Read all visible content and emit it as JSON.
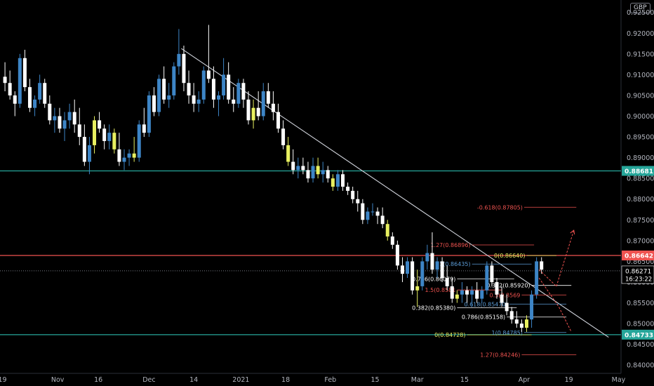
{
  "currency": "GBP",
  "colors": {
    "background": "#000000",
    "bullish": "#3d85c6",
    "bearish": "#ffffff",
    "highlight": "#e8f060",
    "support": "#26a69a",
    "resistance": "#ef5350",
    "trendline": "#d1d4dc",
    "fib_red": "#ef5350",
    "fib_yellow": "#e8f060",
    "fib_blue": "#5b9bd5",
    "fib_white": "#ffffff"
  },
  "chart_data": {
    "type": "candlestick",
    "ylim": [
      0.838,
      0.928
    ],
    "y_ticks": [
      "0.92500",
      "0.92000",
      "0.91500",
      "0.91000",
      "0.90500",
      "0.90000",
      "0.89500",
      "0.89000",
      "0.88500",
      "0.88000",
      "0.87500",
      "0.87000",
      "0.86500",
      "0.86000",
      "0.85500",
      "0.85000",
      "0.84500",
      "0.84000"
    ],
    "x_ticks": [
      "19",
      "Nov",
      "16",
      "Dec",
      "14",
      "2021",
      "18",
      "Feb",
      "15",
      "Mar",
      "15",
      "Apr",
      "19",
      "May"
    ],
    "x_tick_positions": [
      0.5,
      11.6,
      19.8,
      30.0,
      39.0,
      48.5,
      57.5,
      66.5,
      75.5,
      84.0,
      93.5,
      105.5,
      114.5,
      124.5
    ],
    "x_range": [
      0,
      125
    ],
    "candles": [
      [
        0.9095,
        0.913,
        0.906,
        0.908
      ],
      [
        0.908,
        0.911,
        0.904,
        0.905
      ],
      [
        0.905,
        0.906,
        0.9,
        0.903
      ],
      [
        0.903,
        0.915,
        0.902,
        0.914
      ],
      [
        0.914,
        0.916,
        0.906,
        0.907
      ],
      [
        0.907,
        0.909,
        0.901,
        0.902
      ],
      [
        0.902,
        0.905,
        0.9,
        0.904
      ],
      [
        0.904,
        0.91,
        0.903,
        0.908
      ],
      [
        0.908,
        0.909,
        0.902,
        0.903
      ],
      [
        0.903,
        0.905,
        0.898,
        0.899
      ],
      [
        0.899,
        0.902,
        0.896,
        0.9
      ],
      [
        0.9,
        0.902,
        0.896,
        0.897
      ],
      [
        0.897,
        0.901,
        0.894,
        0.899
      ],
      [
        0.899,
        0.903,
        0.897,
        0.901
      ],
      [
        0.901,
        0.904,
        0.896,
        0.898
      ],
      [
        0.898,
        0.902,
        0.893,
        0.895
      ],
      [
        0.895,
        0.898,
        0.888,
        0.889
      ],
      [
        0.889,
        0.895,
        0.886,
        0.893
      ],
      [
        0.893,
        0.9,
        0.891,
        0.899
      ],
      [
        0.899,
        0.901,
        0.896,
        0.897
      ],
      [
        0.897,
        0.898,
        0.892,
        0.894
      ],
      [
        0.894,
        0.898,
        0.892,
        0.896
      ],
      [
        0.896,
        0.897,
        0.891,
        0.892
      ],
      [
        0.892,
        0.896,
        0.888,
        0.889
      ],
      [
        0.889,
        0.892,
        0.887,
        0.89
      ],
      [
        0.89,
        0.892,
        0.888,
        0.891
      ],
      [
        0.891,
        0.895,
        0.889,
        0.89
      ],
      [
        0.89,
        0.899,
        0.889,
        0.898
      ],
      [
        0.898,
        0.902,
        0.895,
        0.896
      ],
      [
        0.896,
        0.906,
        0.895,
        0.905
      ],
      [
        0.905,
        0.907,
        0.9,
        0.901
      ],
      [
        0.901,
        0.91,
        0.9,
        0.909
      ],
      [
        0.909,
        0.912,
        0.903,
        0.904
      ],
      [
        0.904,
        0.908,
        0.902,
        0.905
      ],
      [
        0.905,
        0.913,
        0.904,
        0.912
      ],
      [
        0.912,
        0.921,
        0.91,
        0.915
      ],
      [
        0.915,
        0.917,
        0.906,
        0.908
      ],
      [
        0.908,
        0.911,
        0.903,
        0.905
      ],
      [
        0.905,
        0.908,
        0.901,
        0.903
      ],
      [
        0.903,
        0.906,
        0.901,
        0.904
      ],
      [
        0.904,
        0.912,
        0.903,
        0.911
      ],
      [
        0.911,
        0.922,
        0.908,
        0.909
      ],
      [
        0.909,
        0.912,
        0.902,
        0.904
      ],
      [
        0.904,
        0.906,
        0.9,
        0.905
      ],
      [
        0.905,
        0.914,
        0.904,
        0.91
      ],
      [
        0.91,
        0.913,
        0.903,
        0.904
      ],
      [
        0.904,
        0.907,
        0.901,
        0.903
      ],
      [
        0.903,
        0.909,
        0.902,
        0.908
      ],
      [
        0.908,
        0.909,
        0.902,
        0.904
      ],
      [
        0.904,
        0.906,
        0.898,
        0.899
      ],
      [
        0.899,
        0.904,
        0.897,
        0.902
      ],
      [
        0.902,
        0.906,
        0.899,
        0.9
      ],
      [
        0.9,
        0.908,
        0.899,
        0.906
      ],
      [
        0.906,
        0.908,
        0.902,
        0.903
      ],
      [
        0.903,
        0.906,
        0.899,
        0.901
      ],
      [
        0.901,
        0.903,
        0.896,
        0.897
      ],
      [
        0.897,
        0.899,
        0.892,
        0.893
      ],
      [
        0.893,
        0.895,
        0.888,
        0.889
      ],
      [
        0.889,
        0.892,
        0.886,
        0.887
      ],
      [
        0.887,
        0.89,
        0.885,
        0.888
      ],
      [
        0.888,
        0.89,
        0.886,
        0.887
      ],
      [
        0.887,
        0.889,
        0.884,
        0.885
      ],
      [
        0.885,
        0.89,
        0.884,
        0.888
      ],
      [
        0.888,
        0.89,
        0.885,
        0.886
      ],
      [
        0.886,
        0.889,
        0.884,
        0.887
      ],
      [
        0.887,
        0.888,
        0.884,
        0.885
      ],
      [
        0.885,
        0.886,
        0.882,
        0.883
      ],
      [
        0.883,
        0.887,
        0.882,
        0.886
      ],
      [
        0.886,
        0.887,
        0.882,
        0.883
      ],
      [
        0.883,
        0.884,
        0.881,
        0.882
      ],
      [
        0.882,
        0.883,
        0.879,
        0.88
      ],
      [
        0.88,
        0.882,
        0.877,
        0.879
      ],
      [
        0.879,
        0.88,
        0.874,
        0.875
      ],
      [
        0.875,
        0.878,
        0.874,
        0.877
      ],
      [
        0.877,
        0.879,
        0.876,
        0.877
      ],
      [
        0.877,
        0.878,
        0.874,
        0.876
      ],
      [
        0.876,
        0.878,
        0.873,
        0.874
      ],
      [
        0.874,
        0.875,
        0.87,
        0.871
      ],
      [
        0.871,
        0.872,
        0.868,
        0.869
      ],
      [
        0.869,
        0.87,
        0.863,
        0.864
      ],
      [
        0.864,
        0.866,
        0.86,
        0.862
      ],
      [
        0.862,
        0.866,
        0.861,
        0.865
      ],
      [
        0.865,
        0.866,
        0.857,
        0.858
      ],
      [
        0.858,
        0.863,
        0.854,
        0.859
      ],
      [
        0.859,
        0.866,
        0.858,
        0.865
      ],
      [
        0.865,
        0.869,
        0.863,
        0.867
      ],
      [
        0.867,
        0.872,
        0.862,
        0.863
      ],
      [
        0.863,
        0.866,
        0.861,
        0.865
      ],
      [
        0.865,
        0.866,
        0.86,
        0.861
      ],
      [
        0.861,
        0.864,
        0.858,
        0.859
      ],
      [
        0.859,
        0.861,
        0.855,
        0.856
      ],
      [
        0.856,
        0.858,
        0.855,
        0.857
      ],
      [
        0.857,
        0.86,
        0.855,
        0.858
      ],
      [
        0.858,
        0.859,
        0.855,
        0.857
      ],
      [
        0.857,
        0.859,
        0.854,
        0.858
      ],
      [
        0.858,
        0.86,
        0.855,
        0.856
      ],
      [
        0.856,
        0.859,
        0.855,
        0.858
      ],
      [
        0.858,
        0.865,
        0.857,
        0.864
      ],
      [
        0.864,
        0.865,
        0.859,
        0.86
      ],
      [
        0.86,
        0.861,
        0.856,
        0.857
      ],
      [
        0.857,
        0.859,
        0.854,
        0.855
      ],
      [
        0.855,
        0.857,
        0.852,
        0.853
      ],
      [
        0.853,
        0.854,
        0.85,
        0.851
      ],
      [
        0.851,
        0.853,
        0.849,
        0.85
      ],
      [
        0.85,
        0.851,
        0.848,
        0.849
      ],
      [
        0.849,
        0.852,
        0.848,
        0.851
      ],
      [
        0.851,
        0.858,
        0.849,
        0.857
      ],
      [
        0.857,
        0.866,
        0.856,
        0.865
      ],
      [
        0.865,
        0.866,
        0.862,
        0.863
      ]
    ],
    "highlighted_candles": [
      18,
      22,
      26,
      50,
      57,
      63,
      66,
      77,
      83,
      91,
      105
    ],
    "horizontal_lines": [
      {
        "price": 0.88681,
        "label": "0.88681",
        "color": "#26a69a"
      },
      {
        "price": 0.86642,
        "label": "0.86642",
        "color": "#ef5350"
      },
      {
        "price": 0.84733,
        "label": "0.84733",
        "color": "#26a69a"
      }
    ],
    "current_price": {
      "price": 0.86271,
      "label": "0.86271",
      "countdown": "16:23:22"
    },
    "trendline": {
      "x1": 36.5,
      "y1": 0.9163,
      "x2": 122.5,
      "y2": 0.8467
    },
    "fib_labels": [
      {
        "text": "-0.618(0.87805)",
        "price": 0.87805,
        "x_start": 105.5,
        "x_end": 116.0,
        "color": "#ef5350"
      },
      {
        "text": "1.27(0.86896)",
        "price": 0.86896,
        "x_start": 95.0,
        "x_end": 107.5,
        "color": "#ef5350"
      },
      {
        "text": "0(0.86640)",
        "price": 0.8664,
        "x_start": 106.0,
        "x_end": 112.0,
        "color": "#e8f060"
      },
      {
        "text": "1(0.86435)",
        "price": 0.86435,
        "x_start": 95.0,
        "x_end": 107.0,
        "color": "#5b9bd5"
      },
      {
        "text": "0.382(0.85920)",
        "price": 0.8592,
        "x_start": 107.0,
        "x_end": 115.0,
        "color": "#ffffff"
      },
      {
        "text": "0.786(0.86079)",
        "price": 0.86079,
        "x_start": 92.0,
        "x_end": 103.5,
        "color": "#ffffff"
      },
      {
        "text": "0.5(0.8569",
        "price": 0.8569,
        "x_start": 105.0,
        "x_end": 114.0,
        "color": "#ef5350"
      },
      {
        "text": "1.5(0.8581",
        "price": 0.8581,
        "x_start": 92.0,
        "x_end": 101.0,
        "color": "#ef5350"
      },
      {
        "text": "0.618(0.85470)",
        "price": 0.8547,
        "x_start": 102.5,
        "x_end": 114.0,
        "color": "#5b9bd5"
      },
      {
        "text": "0.382(0.85380)",
        "price": 0.8538,
        "x_start": 92.0,
        "x_end": 104.0,
        "color": "#ffffff"
      },
      {
        "text": "0.786(0.85158)",
        "price": 0.85158,
        "x_start": 102.0,
        "x_end": 114.0,
        "color": "#ffffff"
      },
      {
        "text": "0(0.84728)",
        "price": 0.84728,
        "x_start": 94.0,
        "x_end": 107.0,
        "color": "#e8f060"
      },
      {
        "text": "1(0.84785)",
        "price": 0.84785,
        "x_start": 105.5,
        "x_end": 114.0,
        "color": "#5b9bd5"
      },
      {
        "text": "1.27(0.84246)",
        "price": 0.84246,
        "x_start": 105.0,
        "x_end": 116.0,
        "color": "#ef5350"
      }
    ],
    "projection": [
      {
        "x": 108.5,
        "price": 0.863,
        "to_x": 112.0,
        "to_price": 0.859
      },
      {
        "x": 112.0,
        "price": 0.859,
        "to_x": 115.5,
        "to_price": 0.8725
      },
      {
        "x": 108.5,
        "price": 0.861,
        "to_x": 112.5,
        "to_price": 0.854
      },
      {
        "x": 112.5,
        "price": 0.854,
        "to_x": 115.0,
        "to_price": 0.848
      }
    ]
  }
}
